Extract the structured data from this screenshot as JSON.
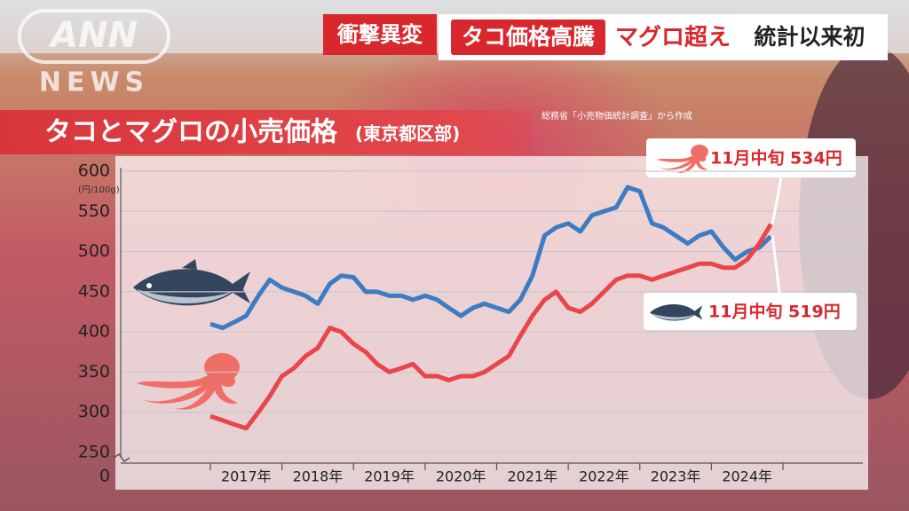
{
  "screen": {
    "logo_top": "ANN",
    "logo_bottom": "NEWS",
    "banner_tag": "衝撃異変",
    "banner_highlight": "タコ価格高騰",
    "banner_emphasis": "マグロ超え",
    "banner_text": "統計以来初",
    "source": "総務省「小売物価統計調査」から作成"
  },
  "chart_data": {
    "type": "line",
    "title": "タコとマグロの小売価格",
    "subtitle": "(東京都区部)",
    "y_unit": "(円/100g)",
    "axis_break_value": 0,
    "xlim": [
      2017,
      2025
    ],
    "xticks": [
      {
        "value": 2017.5,
        "label": "2017年"
      },
      {
        "value": 2018.5,
        "label": "2018年"
      },
      {
        "value": 2019.5,
        "label": "2019年"
      },
      {
        "value": 2020.5,
        "label": "2020年"
      },
      {
        "value": 2021.5,
        "label": "2021年"
      },
      {
        "value": 2022.5,
        "label": "2022年"
      },
      {
        "value": 2023.5,
        "label": "2023年"
      },
      {
        "value": 2024.5,
        "label": "2024年"
      }
    ],
    "ylim": [
      250,
      600
    ],
    "yticks": [
      250,
      300,
      350,
      400,
      450,
      500,
      550,
      600
    ],
    "grid": true,
    "x": [
      2017.0,
      2017.17,
      2017.33,
      2017.5,
      2017.67,
      2017.83,
      2018.0,
      2018.17,
      2018.33,
      2018.5,
      2018.67,
      2018.83,
      2019.0,
      2019.17,
      2019.33,
      2019.5,
      2019.67,
      2019.83,
      2020.0,
      2020.17,
      2020.33,
      2020.5,
      2020.67,
      2020.83,
      2021.0,
      2021.17,
      2021.33,
      2021.5,
      2021.67,
      2021.83,
      2022.0,
      2022.17,
      2022.33,
      2022.5,
      2022.67,
      2022.83,
      2023.0,
      2023.17,
      2023.33,
      2023.5,
      2023.67,
      2023.83,
      2024.0,
      2024.17,
      2024.33,
      2024.5,
      2024.67,
      2024.83
    ],
    "series": [
      {
        "color": "#3d7cc2",
        "values": [
          410,
          405,
          412,
          420,
          445,
          465,
          455,
          450,
          445,
          435,
          460,
          470,
          468,
          450,
          450,
          445,
          445,
          440,
          445,
          440,
          430,
          420,
          430,
          435,
          430,
          425,
          440,
          470,
          520,
          530,
          535,
          525,
          545,
          550,
          555,
          580,
          575,
          535,
          530,
          520,
          510,
          520,
          525,
          505,
          490,
          500,
          505,
          519
        ]
      },
      {
        "color": "#e8464a",
        "values": [
          295,
          290,
          285,
          280,
          300,
          320,
          345,
          355,
          370,
          380,
          405,
          400,
          385,
          375,
          360,
          350,
          355,
          360,
          345,
          345,
          340,
          345,
          345,
          350,
          360,
          370,
          395,
          420,
          440,
          450,
          430,
          425,
          435,
          450,
          465,
          470,
          470,
          465,
          470,
          475,
          480,
          485,
          485,
          480,
          480,
          490,
          510,
          534
        ]
      }
    ],
    "annotations": [
      {
        "text": "11月中旬 534円",
        "series": 1
      },
      {
        "text": "11月中旬 519円",
        "series": 0
      }
    ]
  }
}
